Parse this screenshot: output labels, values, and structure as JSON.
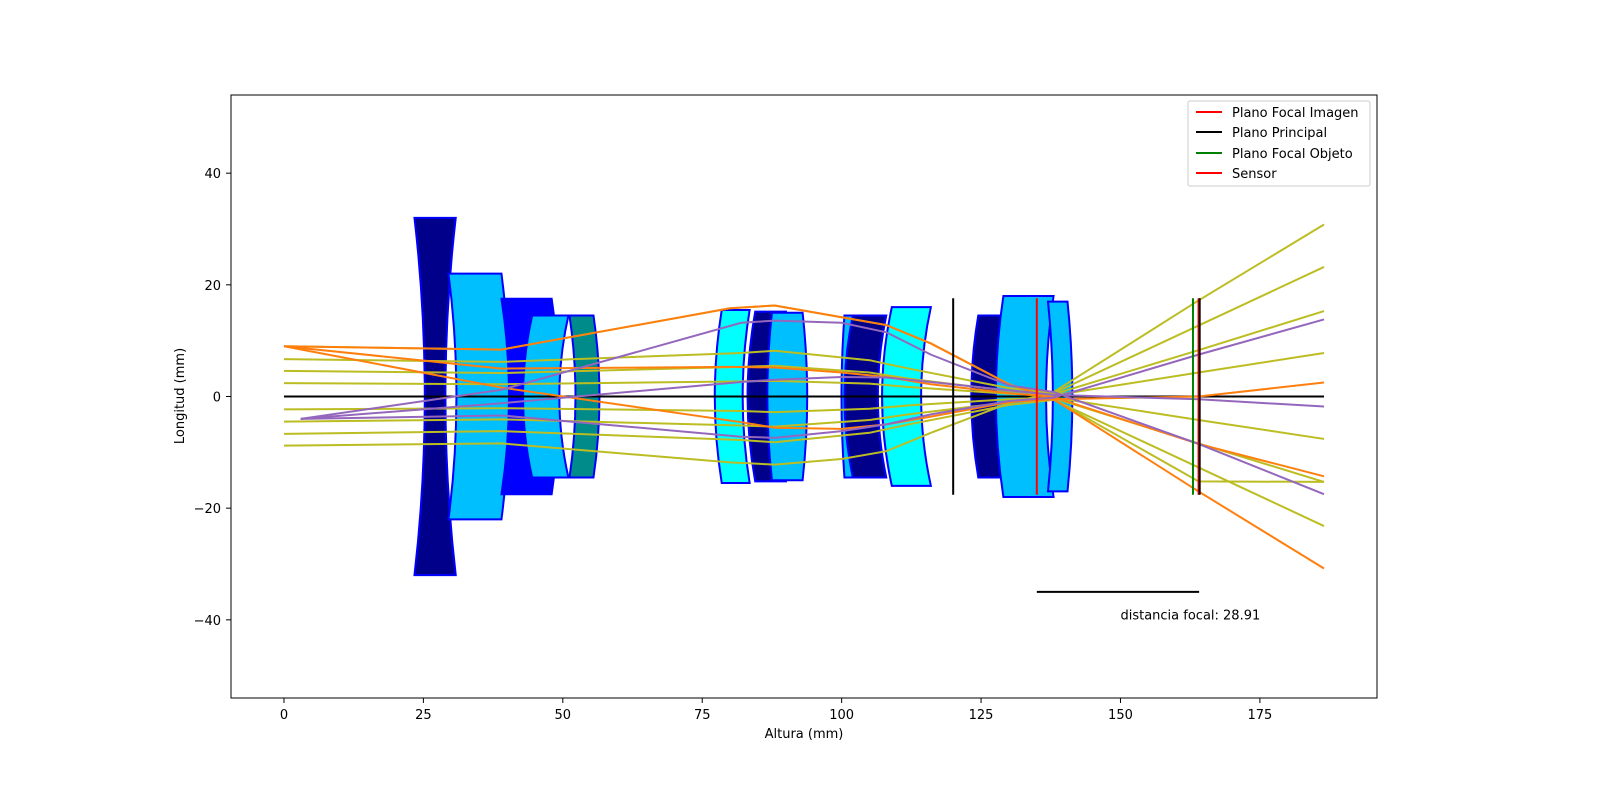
{
  "chart_data": {
    "type": "line",
    "xlabel": "Altura (mm)",
    "ylabel": "Longitud (mm)",
    "xlim": [
      -9.5,
      196
    ],
    "ylim": [
      -54,
      54
    ],
    "x_ticks": [
      0,
      25,
      50,
      75,
      100,
      125,
      150,
      175
    ],
    "y_ticks": [
      -40,
      -20,
      0,
      20,
      40
    ],
    "grid": false,
    "legend_position": "top-right",
    "legend": [
      {
        "label": "Plano Focal Imagen",
        "color": "#ff0000"
      },
      {
        "label": "Plano Principal",
        "color": "#000000"
      },
      {
        "label": "Plano Focal Objeto",
        "color": "#008000"
      },
      {
        "label": "Sensor",
        "color": "#ff0000"
      }
    ],
    "annotation": {
      "text": "distancia focal: 28.91",
      "text_x": 150,
      "text_y": -39,
      "bar_x": [
        135,
        164.1
      ],
      "bar_y": -35
    },
    "optical_axis": {
      "x": [
        0,
        186.5
      ],
      "y": [
        0,
        0
      ],
      "color": "#000000"
    },
    "vertical_lines": [
      {
        "name": "plano-principal",
        "x": 120,
        "y": [
          -17.6,
          17.6
        ],
        "color": "#000000"
      },
      {
        "name": "plano-focal-objeto",
        "x": 163,
        "y": [
          -17.6,
          17.6
        ],
        "color": "#008000"
      },
      {
        "name": "plano-focal-imagen",
        "x": 164,
        "y": [
          -17.6,
          17.6
        ],
        "color": "#ff0000"
      },
      {
        "name": "principal-2",
        "x": 164.2,
        "y": [
          -17.6,
          17.6
        ],
        "color": "#000000"
      },
      {
        "name": "sensor",
        "x": 135,
        "y": [
          -17.6,
          17.6
        ],
        "color": "#ff0000"
      }
    ],
    "lenses": [
      {
        "x1": 23.4,
        "x2": 30.8,
        "h": 32,
        "r1": -1,
        "r2": -1,
        "fill": "#00008b",
        "stroke": "#0000ff"
      },
      {
        "x1": 29.5,
        "x2": 39,
        "h": 22,
        "r1": -1,
        "r2": 1,
        "flat": true,
        "fill": "#00bfff",
        "stroke": "#0000ff"
      },
      {
        "x1": 39,
        "x2": 48,
        "h": 17.5,
        "r1": -1,
        "r2": 1,
        "flat": true,
        "fill": "#0000ff",
        "stroke": "#0000ff"
      },
      {
        "x1": 44.5,
        "x2": 51,
        "h": 14.5,
        "r1": 1,
        "r2": -1,
        "fill": "#00bfff",
        "stroke": "#0000ff"
      },
      {
        "x1": 51.2,
        "x2": 55.5,
        "h": 14.5,
        "r1": -1,
        "r2": 1,
        "fill": "#008b8b",
        "stroke": "#0000ff"
      },
      {
        "x1": 78.5,
        "x2": 83.5,
        "h": 15.5,
        "r1": 1,
        "r2": -1,
        "fill": "#00ffff",
        "stroke": "#0000ff"
      },
      {
        "x1": 84.5,
        "x2": 90,
        "h": 15.2,
        "r1": 1,
        "r2": -1,
        "fill": "#00008b",
        "stroke": "#0000ff"
      },
      {
        "x1": 87.5,
        "x2": 93,
        "h": 15,
        "r1": 1,
        "r2": 1,
        "flat": true,
        "fill": "#00bfff",
        "stroke": "#0000ff"
      },
      {
        "x1": 100.5,
        "x2": 104,
        "h": 14.5,
        "r1": 1,
        "r2": 1,
        "flat": true,
        "fill": "#00bfff",
        "stroke": "#0000ff"
      },
      {
        "x1": 102,
        "x2": 108,
        "h": 14.5,
        "r1": 1,
        "r2": -1,
        "fill": "#00008b",
        "stroke": "#0000ff"
      },
      {
        "x1": 109,
        "x2": 116,
        "h": 16,
        "r1": 1,
        "r2": -1,
        "fill": "#00ffff",
        "stroke": "#0000ff"
      },
      {
        "x1": 124.5,
        "x2": 129.5,
        "h": 14.5,
        "r1": 1,
        "r2": 1,
        "fill": "#00008b",
        "stroke": "#0000ff"
      },
      {
        "x1": 129,
        "x2": 138,
        "h": 18,
        "r1": 1,
        "r2": -1,
        "flat": true,
        "fill": "#00bfff",
        "stroke": "#0000ff"
      },
      {
        "x1": 137,
        "x2": 140.5,
        "h": 17,
        "r1": -1,
        "r2": 1,
        "fill": "#00bfff",
        "stroke": "#0000ff"
      }
    ],
    "series": [
      {
        "color": "#bcbd22",
        "x": [
          0,
          39,
          82,
          88,
          105,
          112,
          130,
          138,
          164,
          186.5
        ],
        "y": [
          6.7,
          6.2,
          7.8,
          8.2,
          6.5,
          5,
          1.5,
          0.6,
          12.7,
          23.2
        ]
      },
      {
        "color": "#bcbd22",
        "x": [
          0,
          39,
          82,
          88,
          105,
          112,
          130,
          138,
          164,
          186.5
        ],
        "y": [
          4.6,
          4.2,
          5.3,
          5.5,
          4.3,
          3.2,
          1,
          0.4,
          8.3,
          15.3
        ]
      },
      {
        "color": "#bcbd22",
        "x": [
          0,
          39,
          82,
          88,
          105,
          112,
          130,
          138,
          164,
          186.5
        ],
        "y": [
          2.4,
          2.2,
          2.7,
          2.8,
          2.3,
          1.7,
          0.5,
          0.2,
          4.3,
          7.8
        ]
      },
      {
        "color": "#bcbd22",
        "x": [
          0,
          39,
          82,
          88,
          105,
          112,
          130,
          138,
          164,
          186.5
        ],
        "y": [
          -2.3,
          -2.1,
          -2.6,
          -2.8,
          -2.2,
          -1.6,
          -0.5,
          -0.2,
          -4.2,
          -7.6
        ]
      },
      {
        "color": "#bcbd22",
        "x": [
          0,
          39,
          82,
          88,
          105,
          112,
          130,
          138,
          164,
          186.5
        ],
        "y": [
          -4.5,
          -4.1,
          -5.2,
          -5.4,
          -4.2,
          -3.2,
          -1,
          -0.3,
          -8.4,
          -15.3
        ]
      },
      {
        "color": "#bcbd22",
        "x": [
          0,
          39,
          82,
          88,
          105,
          112,
          130,
          138,
          164,
          186.5
        ],
        "y": [
          -6.7,
          -6.2,
          -7.8,
          -8.2,
          -6.5,
          -5,
          -1.5,
          -0.6,
          -12.7,
          -23.2
        ]
      },
      {
        "color": "#bcbd22",
        "x": [
          0,
          39,
          80,
          88,
          100,
          108,
          116,
          130,
          138,
          164,
          186.5
        ],
        "y": [
          -8.8,
          -8.4,
          -11.8,
          -12.2,
          -11.2,
          -9.8,
          -6.5,
          -1.2,
          0.8,
          17.2,
          30.8
        ]
      },
      {
        "color": "#bcbd22",
        "x": [
          0,
          39,
          80,
          88,
          100,
          108,
          116,
          130,
          138,
          164,
          186.5
        ],
        "y": [
          9,
          8.4,
          15.8,
          16.3,
          14.2,
          12.8,
          9.5,
          2.2,
          -0.5,
          -15.2,
          -15.3
        ]
      },
      {
        "color": "#ff7f0e",
        "x": [
          0,
          39,
          80,
          88,
          100,
          108,
          116,
          130,
          138,
          164,
          186.5
        ],
        "y": [
          9,
          8.4,
          15.8,
          16.3,
          14.2,
          12.8,
          9.5,
          2.2,
          -0.5,
          -17,
          -30.8
        ]
      },
      {
        "color": "#ff7f0e",
        "x": [
          0,
          39,
          80,
          88,
          100,
          108,
          116,
          130,
          138,
          164,
          186.5
        ],
        "y": [
          9,
          5,
          5.3,
          5.2,
          4.3,
          3.5,
          2.2,
          0.6,
          -0.1,
          -8.5,
          -14.3
        ]
      },
      {
        "color": "#ff7f0e",
        "x": [
          0,
          39,
          82,
          88,
          100,
          108,
          116,
          130,
          138,
          164,
          186.5
        ],
        "y": [
          9,
          1.6,
          -4.6,
          -5.6,
          -5.8,
          -5,
          -3.6,
          -1,
          -0.5,
          0,
          2.5
        ]
      },
      {
        "color": "#9467bd",
        "x": [
          3,
          39,
          82,
          88,
          100,
          108,
          116,
          130,
          138,
          164,
          186.5
        ],
        "y": [
          -4,
          1.2,
          13.2,
          13.6,
          13.2,
          11.5,
          7.5,
          2,
          0.8,
          -8.5,
          -17.5
        ]
      },
      {
        "color": "#9467bd",
        "x": [
          3,
          39,
          82,
          88,
          100,
          108,
          116,
          130,
          138,
          164,
          186.5
        ],
        "y": [
          -4,
          -3.4,
          -7.2,
          -7.4,
          -6.2,
          -5,
          -3.2,
          -0.8,
          -0.2,
          7.5,
          13.8
        ]
      },
      {
        "color": "#9467bd",
        "x": [
          3,
          39,
          82,
          88,
          100,
          108,
          116,
          130,
          138,
          164,
          186.5
        ],
        "y": [
          -4,
          -1.2,
          2.6,
          3,
          3.5,
          3.4,
          2.6,
          1.1,
          0.3,
          -0.5,
          -1.8
        ]
      }
    ]
  }
}
